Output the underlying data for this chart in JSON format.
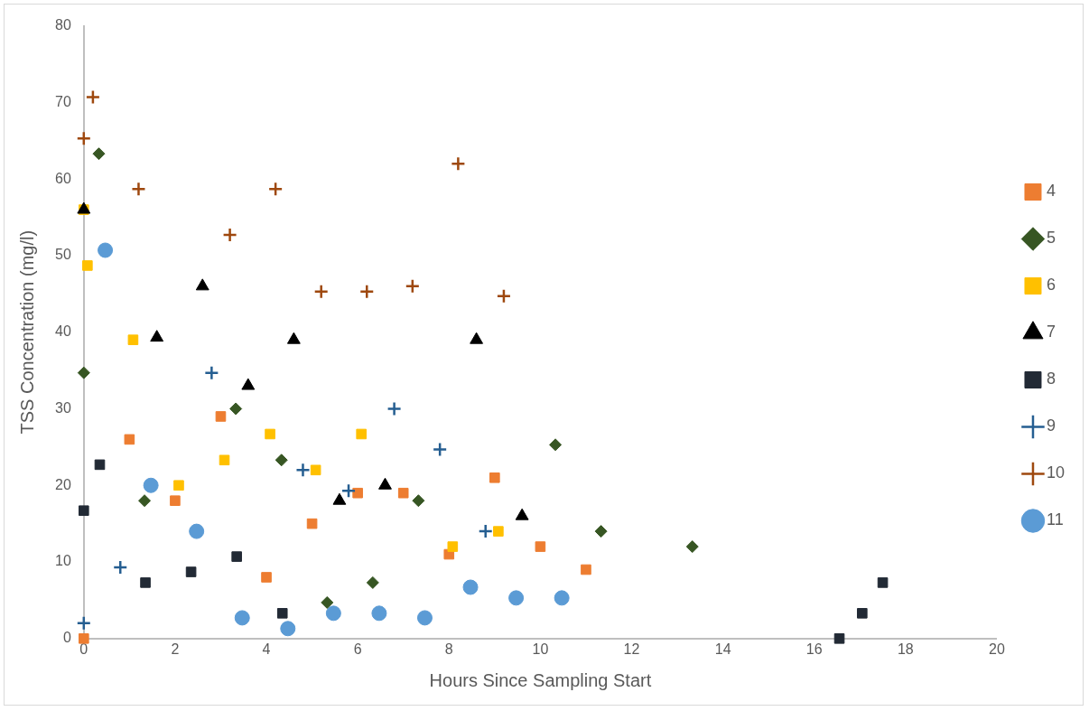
{
  "chart_data": {
    "type": "scatter",
    "xlabel": "Hours Since Sampling Start",
    "ylabel": "TSS Concentration (mg/l)",
    "xlim": [
      0,
      20
    ],
    "xticks": [
      0,
      2,
      4,
      6,
      8,
      10,
      12,
      14,
      16,
      18,
      20
    ],
    "ylim": [
      0,
      80
    ],
    "yticks": [
      0,
      10,
      20,
      30,
      40,
      50,
      60,
      70,
      80
    ],
    "grid": false,
    "legend": "right",
    "series": [
      {
        "name": "4",
        "color": "#ed7d31",
        "marker": "square",
        "x": [
          0,
          1,
          2,
          3,
          4,
          5,
          6,
          7,
          8,
          9,
          10,
          11
        ],
        "values": [
          0,
          26,
          18,
          29,
          8,
          15,
          19,
          19,
          11,
          21,
          12,
          9
        ]
      },
      {
        "name": "5",
        "color": "#375623",
        "marker": "diamond",
        "x": [
          0,
          0.33,
          1.33,
          3.33,
          4.33,
          5.33,
          6.33,
          7.33,
          10.33,
          11.33,
          13.33
        ],
        "values": [
          34.7,
          63.3,
          18,
          30,
          23.3,
          4.7,
          7.3,
          18,
          25.3,
          14,
          12
        ]
      },
      {
        "name": "6",
        "color": "#ffc000",
        "marker": "square",
        "x": [
          0,
          0.08,
          1.08,
          2.08,
          3.08,
          4.08,
          5.08,
          6.08,
          8.08,
          9.08
        ],
        "values": [
          56,
          48.7,
          39,
          20,
          23.3,
          26.7,
          22,
          26.7,
          12,
          14
        ]
      },
      {
        "name": "7",
        "color": "#000000",
        "marker": "triangle",
        "x": [
          0,
          1.6,
          2.6,
          3.6,
          4.6,
          5.6,
          6.6,
          8.6,
          9.6
        ],
        "values": [
          56,
          39.3,
          46,
          33,
          39,
          18,
          20,
          39,
          16
        ]
      },
      {
        "name": "8",
        "color": "#222a35",
        "marker": "square",
        "x": [
          0,
          0.35,
          1.35,
          2.35,
          3.35,
          4.35,
          16.55,
          17.05,
          17.5
        ],
        "values": [
          16.7,
          22.7,
          7.3,
          8.7,
          10.7,
          3.3,
          0,
          3.3,
          7.3
        ]
      },
      {
        "name": "9",
        "color": "#255e91",
        "marker": "cross",
        "x": [
          0,
          0.8,
          2.8,
          4.8,
          5.8,
          6.8,
          7.8,
          8.8
        ],
        "values": [
          2,
          9.3,
          34.7,
          22,
          19.3,
          30,
          24.7,
          14
        ]
      },
      {
        "name": "10",
        "color": "#9e480e",
        "marker": "cross",
        "x": [
          0,
          0.2,
          1.2,
          3.2,
          4.2,
          5.2,
          6.2,
          7.2,
          8.2,
          9.2
        ],
        "values": [
          65.3,
          70.7,
          58.7,
          52.7,
          58.7,
          45.3,
          45.3,
          46,
          62,
          44.7
        ]
      },
      {
        "name": "11",
        "color": "#5b9bd5",
        "marker": "circle",
        "x": [
          0.47,
          1.47,
          2.47,
          3.47,
          4.47,
          5.47,
          6.47,
          7.47,
          8.47,
          9.47,
          10.47
        ],
        "values": [
          50.7,
          20,
          14,
          2.7,
          1.3,
          3.3,
          3.3,
          2.7,
          6.7,
          5.3,
          5.3
        ]
      }
    ]
  }
}
